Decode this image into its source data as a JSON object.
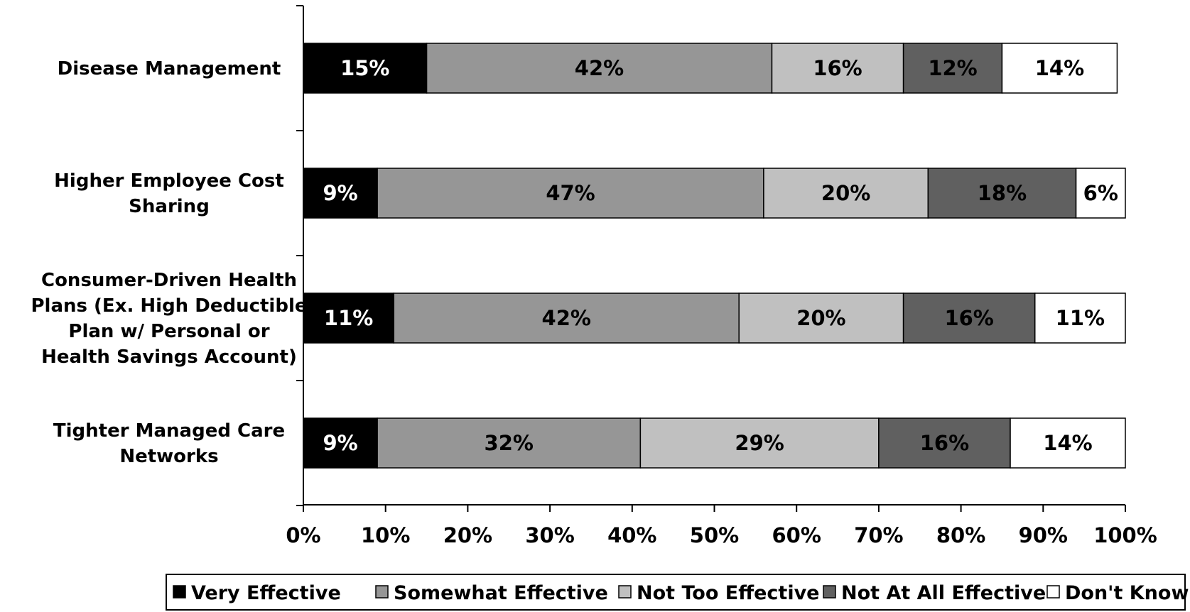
{
  "chart_data": {
    "type": "bar",
    "orientation": "horizontal",
    "stacked": true,
    "title": "",
    "xlabel": "",
    "ylabel": "",
    "xlim": [
      0,
      100
    ],
    "x_ticks": [
      "0%",
      "10%",
      "20%",
      "30%",
      "40%",
      "50%",
      "60%",
      "70%",
      "80%",
      "90%",
      "100%"
    ],
    "categories": [
      [
        "Disease Management"
      ],
      [
        "Higher Employee Cost",
        "Sharing"
      ],
      [
        "Consumer-Driven Health",
        "Plans (Ex. High Deductible",
        "Plan w/ Personal or",
        "Health Savings Account)"
      ],
      [
        "Tighter Managed Care",
        "Networks"
      ]
    ],
    "series": [
      {
        "name": "Very Effective",
        "color": "#000000",
        "label_color": "#ffffff",
        "values": [
          15,
          9,
          11,
          9
        ],
        "labels": [
          "15%",
          "9%",
          "11%",
          "9%"
        ]
      },
      {
        "name": "Somewhat Effective",
        "color": "#969696",
        "label_color": "#000000",
        "values": [
          42,
          47,
          42,
          32
        ],
        "labels": [
          "42%",
          "47%",
          "42%",
          "32%"
        ]
      },
      {
        "name": "Not Too Effective",
        "color": "#c0c0c0",
        "label_color": "#000000",
        "values": [
          16,
          20,
          20,
          29
        ],
        "labels": [
          "16%",
          "20%",
          "20%",
          "29%"
        ]
      },
      {
        "name": "Not At All Effective",
        "color": "#606060",
        "label_color": "#000000",
        "values": [
          12,
          18,
          16,
          16
        ],
        "labels": [
          "12%",
          "18%",
          "16%",
          "16%"
        ]
      },
      {
        "name": "Don't Know",
        "color": "#ffffff",
        "label_color": "#000000",
        "values": [
          14,
          6,
          11,
          14
        ],
        "labels": [
          "14%",
          "6%",
          "11%",
          "14%"
        ]
      }
    ],
    "grid": false,
    "legend_position": "bottom"
  }
}
